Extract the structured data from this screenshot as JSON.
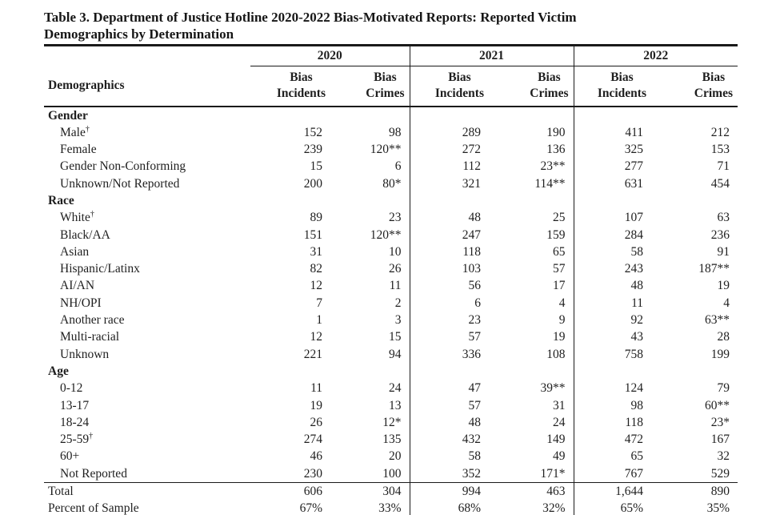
{
  "title": {
    "line1": "Table 3. Department of Justice Hotline 2020-2022 Bias-Motivated Reports: Reported Victim",
    "line2": "Demographics by Determination"
  },
  "table": {
    "demographics_header": "Demographics",
    "year_groups": [
      "2020",
      "2021",
      "2022"
    ],
    "column_headers": [
      {
        "line1": "Bias",
        "line2": "Incidents"
      },
      {
        "line1": "Bias",
        "line2": "Crimes"
      }
    ],
    "sections": [
      {
        "name": "Gender",
        "rows": [
          {
            "label": "Male",
            "sup": "†",
            "values": [
              "152",
              "98",
              "289",
              "190",
              "411",
              "212"
            ]
          },
          {
            "label": "Female",
            "values": [
              "239",
              "120**",
              "272",
              "136",
              "325",
              "153"
            ]
          },
          {
            "label": "Gender Non-Conforming",
            "values": [
              "15",
              "6",
              "112",
              "23**",
              "277",
              "71"
            ]
          },
          {
            "label": "Unknown/Not Reported",
            "values": [
              "200",
              "80*",
              "321",
              "114**",
              "631",
              "454"
            ]
          }
        ]
      },
      {
        "name": "Race",
        "rows": [
          {
            "label": "White",
            "sup": "†",
            "values": [
              "89",
              "23",
              "48",
              "25",
              "107",
              "63"
            ]
          },
          {
            "label": "Black/AA",
            "values": [
              "151",
              "120**",
              "247",
              "159",
              "284",
              "236"
            ]
          },
          {
            "label": "Asian",
            "values": [
              "31",
              "10",
              "118",
              "65",
              "58",
              "91"
            ]
          },
          {
            "label": "Hispanic/Latinx",
            "values": [
              "82",
              "26",
              "103",
              "57",
              "243",
              "187**"
            ]
          },
          {
            "label": "AI/AN",
            "values": [
              "12",
              "11",
              "56",
              "17",
              "48",
              "19"
            ]
          },
          {
            "label": "NH/OPI",
            "values": [
              "7",
              "2",
              "6",
              "4",
              "11",
              "4"
            ]
          },
          {
            "label": "Another race",
            "values": [
              "1",
              "3",
              "23",
              "9",
              "92",
              "63**"
            ]
          },
          {
            "label": "Multi-racial",
            "values": [
              "12",
              "15",
              "57",
              "19",
              "43",
              "28"
            ]
          },
          {
            "label": "Unknown",
            "values": [
              "221",
              "94",
              "336",
              "108",
              "758",
              "199"
            ]
          }
        ]
      },
      {
        "name": "Age",
        "rows": [
          {
            "label": "0-12",
            "values": [
              "11",
              "24",
              "47",
              "39**",
              "124",
              "79"
            ]
          },
          {
            "label": "13-17",
            "values": [
              "19",
              "13",
              "57",
              "31",
              "98",
              "60**"
            ]
          },
          {
            "label": "18-24",
            "values": [
              "26",
              "12*",
              "48",
              "24",
              "118",
              "23*"
            ]
          },
          {
            "label": "25-59",
            "sup": "†",
            "values": [
              "274",
              "135",
              "432",
              "149",
              "472",
              "167"
            ]
          },
          {
            "label": "60+",
            "values": [
              "46",
              "20",
              "58",
              "49",
              "65",
              "32"
            ]
          },
          {
            "label": "Not Reported",
            "values": [
              "230",
              "100",
              "352",
              "171*",
              "767",
              "529"
            ]
          }
        ]
      }
    ],
    "summary_rows": [
      {
        "label": "Total",
        "values": [
          "606",
          "304",
          "994",
          "463",
          "1,644",
          "890"
        ]
      },
      {
        "label": "Percent of Sample",
        "values": [
          "67%",
          "33%",
          "68%",
          "32%",
          "65%",
          "35%"
        ]
      }
    ]
  }
}
